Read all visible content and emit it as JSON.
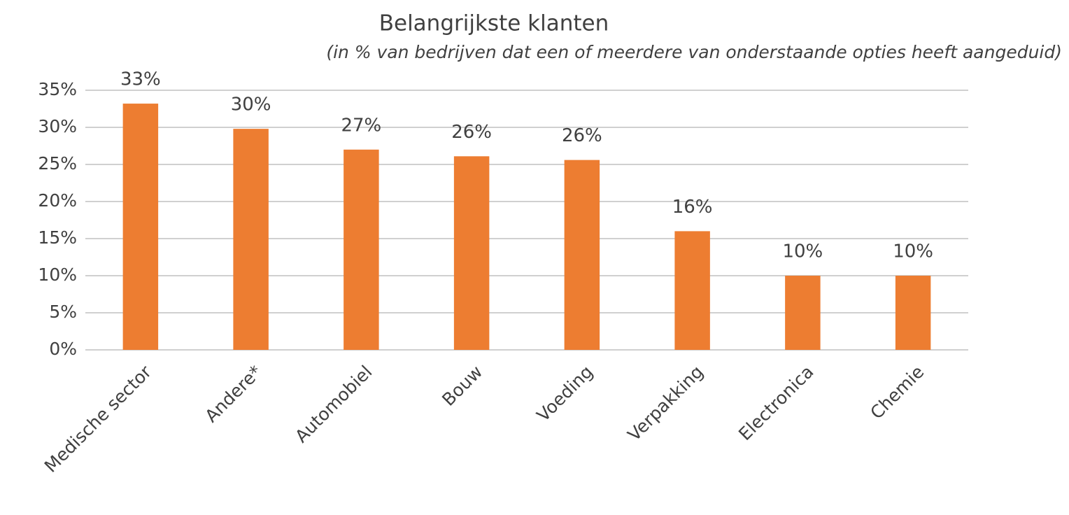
{
  "chart_data": {
    "type": "bar",
    "title": "Belangrijkste klanten",
    "subtitle": "(in % van bedrijven dat een of meerdere van onderstaande opties heeft aangeduid)",
    "categories": [
      "Medische sector",
      "Andere*",
      "Automobiel",
      "Bouw",
      "Voeding",
      "Verpakking",
      "Electronica",
      "Chemie"
    ],
    "values": [
      33.2,
      29.8,
      27,
      26.1,
      25.6,
      16,
      10,
      10
    ],
    "value_labels": [
      "33%",
      "30%",
      "27%",
      "26%",
      "26%",
      "16%",
      "10%",
      "10%"
    ],
    "color": "#ed7d31",
    "ylim": [
      0,
      35
    ],
    "yticks": [
      {
        "value": 0,
        "label": "0%"
      },
      {
        "value": 5,
        "label": "5%"
      },
      {
        "value": 10,
        "label": "10%"
      },
      {
        "value": 15,
        "label": "15%"
      },
      {
        "value": 20,
        "label": "20%"
      },
      {
        "value": 25,
        "label": "25%"
      },
      {
        "value": 30,
        "label": "30%"
      },
      {
        "value": 35,
        "label": "35%"
      }
    ],
    "grid": true
  }
}
